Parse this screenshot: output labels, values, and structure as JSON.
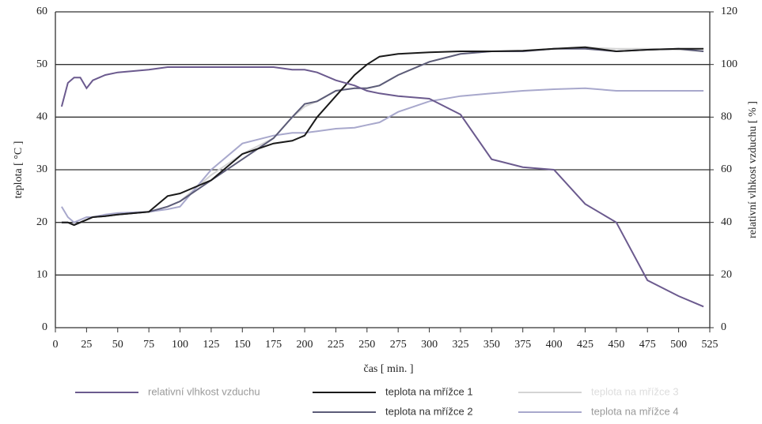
{
  "chart_data": {
    "type": "line",
    "x_label": "čas [ min. ]",
    "y_label": "teplota [ °C ]",
    "y2_label": "relativní vlhkost vzduchu [ % ]",
    "x": [
      5,
      10,
      15,
      20,
      25,
      30,
      40,
      50,
      75,
      90,
      100,
      125,
      150,
      175,
      190,
      200,
      210,
      225,
      240,
      250,
      260,
      275,
      300,
      325,
      350,
      375,
      400,
      425,
      450,
      475,
      500,
      520
    ],
    "series": [
      {
        "name": "relativní vlhkost vzduchu",
        "color": "#6b5a8e",
        "axis": "y2",
        "values": [
          84,
          93,
          95,
          95,
          91,
          94,
          96,
          97,
          98,
          99,
          99,
          99,
          99,
          99,
          98,
          98,
          97,
          94,
          92,
          90,
          89,
          88,
          87,
          81,
          64,
          61,
          60,
          47,
          40,
          18,
          12,
          8
        ]
      },
      {
        "name": "teplota na mřížce 1",
        "color": "#1a1a1a",
        "values": [
          20,
          20,
          19.5,
          20,
          20.5,
          21,
          21.2,
          21.5,
          22,
          25,
          25.5,
          28,
          33,
          35,
          35.5,
          36.5,
          40,
          44,
          48,
          50,
          51.5,
          52,
          52.3,
          52.5,
          52.5,
          52.6,
          53,
          53.3,
          52.5,
          52.8,
          53,
          53
        ]
      },
      {
        "name": "teplota na mřížce 2",
        "color": "#5c5c78",
        "values": [
          20,
          20,
          19.5,
          20,
          20.5,
          21,
          21.2,
          21.5,
          22,
          23,
          24,
          28,
          32,
          36,
          40,
          42.5,
          43,
          45,
          45.5,
          45.5,
          46,
          48,
          50.5,
          52,
          52.5,
          52.5,
          53,
          53,
          52.5,
          52.8,
          53,
          52.5
        ]
      },
      {
        "name": "teplota na mřížce 3",
        "color": "#d4d4d4",
        "values": [
          20,
          20,
          19.5,
          20,
          20.5,
          21,
          21.2,
          21.5,
          22,
          23,
          24,
          29,
          33,
          36,
          40,
          42,
          43,
          45,
          45.5,
          45.5,
          46,
          48,
          50.5,
          52,
          52.5,
          52.5,
          53,
          53.2,
          53,
          53,
          52.8,
          52.5
        ]
      },
      {
        "name": "teplota na mřížce 4",
        "color": "#a8a8cc",
        "values": [
          23,
          21,
          20,
          20.5,
          21,
          21,
          21.5,
          21.8,
          22,
          22.5,
          23,
          30,
          35,
          36.5,
          37,
          37,
          37.3,
          37.8,
          38,
          38.5,
          39,
          41,
          43,
          44,
          44.5,
          45,
          45.3,
          45.5,
          45,
          45,
          45,
          45
        ]
      }
    ],
    "xlim": [
      0,
      525
    ],
    "xticks": [
      0,
      25,
      50,
      75,
      100,
      125,
      150,
      175,
      200,
      225,
      250,
      275,
      300,
      325,
      350,
      375,
      400,
      425,
      450,
      475,
      500,
      525
    ],
    "ylim": [
      0,
      60
    ],
    "yticks": [
      0,
      10,
      20,
      30,
      40,
      50,
      60
    ],
    "y2lim": [
      0,
      120
    ],
    "y2ticks": [
      0,
      20,
      40,
      60,
      80,
      100,
      120
    ],
    "grid": true
  }
}
